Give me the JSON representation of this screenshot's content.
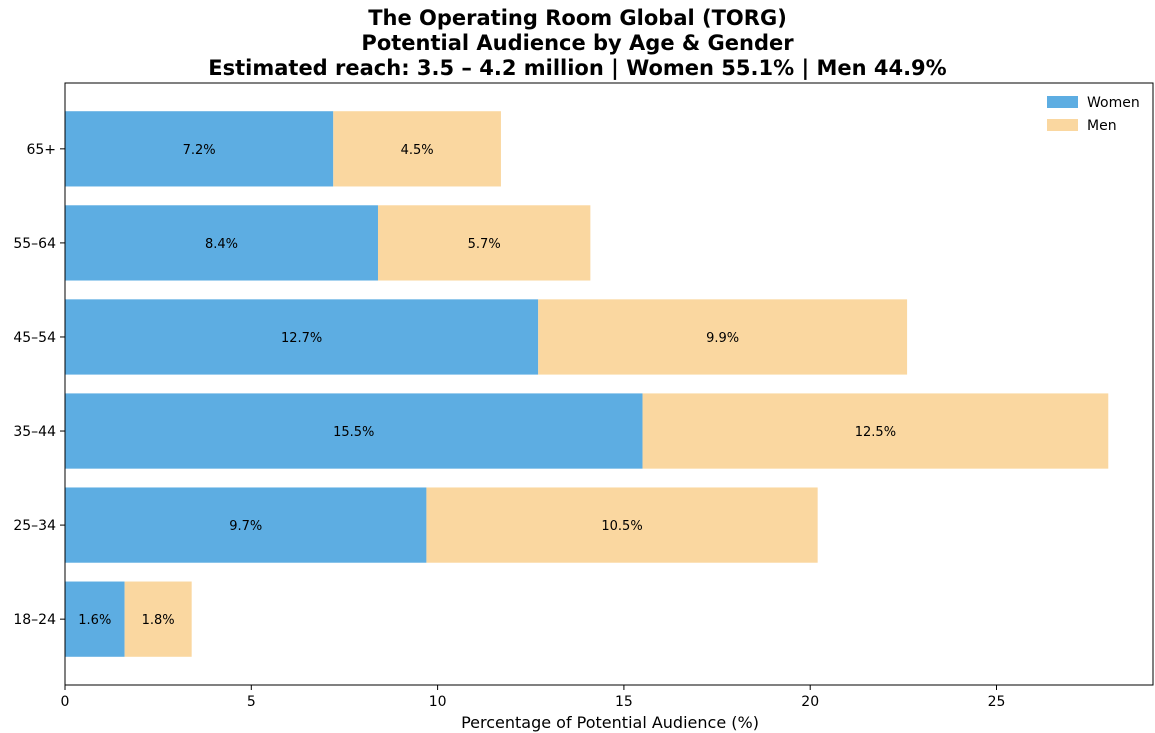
{
  "chart_data": {
    "type": "bar",
    "orientation": "horizontal",
    "stacked": true,
    "title": [
      "The Operating Room Global (TORG)",
      "Potential Audience by Age & Gender",
      "Estimated reach: 3.5 – 4.2 million | Women 55.1% | Men 44.9%"
    ],
    "xlabel": "Percentage of Potential Audience (%)",
    "ylabel": "",
    "xlim": [
      0,
      29.2
    ],
    "xticks": [
      0,
      5,
      10,
      15,
      20,
      25
    ],
    "categories": [
      "18–24",
      "25–34",
      "35–44",
      "45–54",
      "55–64",
      "65+"
    ],
    "series": [
      {
        "name": "Women",
        "color": "#5DADE2",
        "values": [
          1.6,
          9.7,
          15.5,
          12.7,
          8.4,
          7.2
        ],
        "labels": [
          "1.6%",
          "9.7%",
          "15.5%",
          "12.7%",
          "8.4%",
          "7.2%"
        ]
      },
      {
        "name": "Men",
        "color": "#FAD7A0",
        "values": [
          1.8,
          10.5,
          12.5,
          9.9,
          5.7,
          4.5
        ],
        "labels": [
          "1.8%",
          "10.5%",
          "12.5%",
          "9.9%",
          "5.7%",
          "4.5%"
        ]
      }
    ],
    "grid": false,
    "legend": "top-right"
  }
}
